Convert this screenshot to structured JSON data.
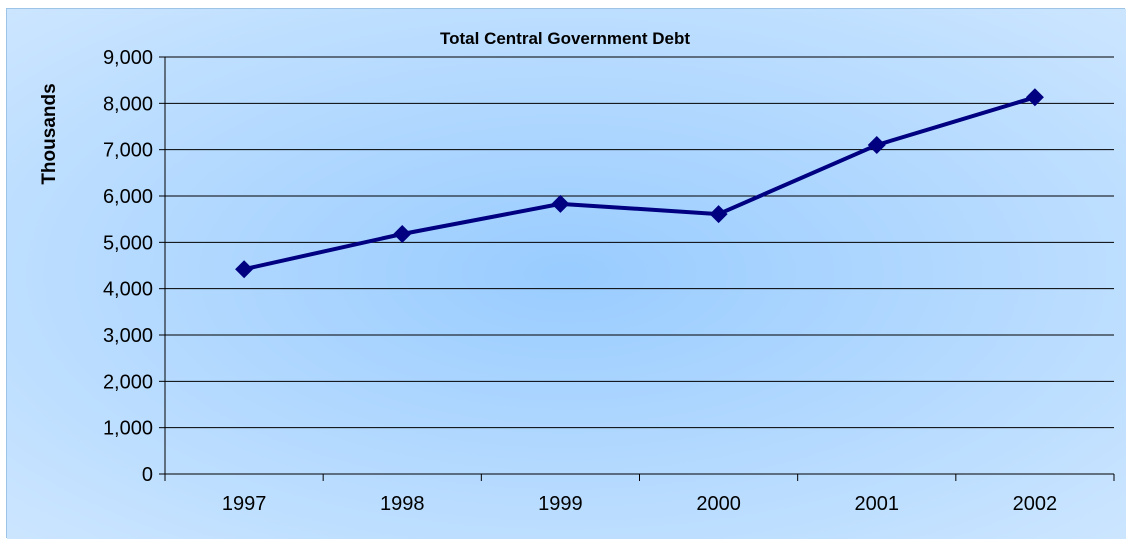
{
  "chart_data": {
    "type": "line",
    "title": "Total Central Government Debt",
    "xlabel": "",
    "ylabel": "Thousands",
    "categories": [
      "1997",
      "1998",
      "1999",
      "2000",
      "2001",
      "2002"
    ],
    "series": [
      {
        "values": [
          4420,
          5180,
          5830,
          5610,
          7100,
          8130
        ]
      }
    ],
    "ylim": [
      0,
      9000
    ],
    "yticks": [
      0,
      1000,
      2000,
      3000,
      4000,
      5000,
      6000,
      7000,
      8000,
      9000
    ],
    "ytick_labels": [
      "0",
      "1,000",
      "2,000",
      "3,000",
      "4,000",
      "5,000",
      "6,000",
      "7,000",
      "8,000",
      "9,000"
    ],
    "grid": true,
    "legend": "none",
    "colors": {
      "background_center": "#99ccff",
      "background_edge": "#cce6ff",
      "series": "#000080",
      "gridline": "#000000"
    },
    "marker": "diamond"
  }
}
